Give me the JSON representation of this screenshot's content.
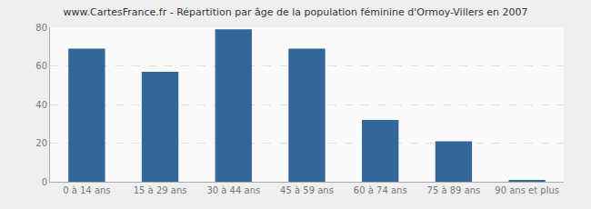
{
  "chart_data": {
    "type": "bar",
    "title": "www.CartesFrance.fr - Répartition par âge de la population féminine d'Ormoy-Villers en 2007",
    "categories": [
      "0 à 14 ans",
      "15 à 29 ans",
      "30 à 44 ans",
      "45 à 59 ans",
      "60 à 74 ans",
      "75 à 89 ans",
      "90 ans et plus"
    ],
    "values": [
      69,
      57,
      79,
      69,
      32,
      21,
      1
    ],
    "color": "#336699",
    "ylim": [
      0,
      80
    ],
    "yticks": [
      0,
      20,
      40,
      60,
      80
    ],
    "grid": true
  }
}
